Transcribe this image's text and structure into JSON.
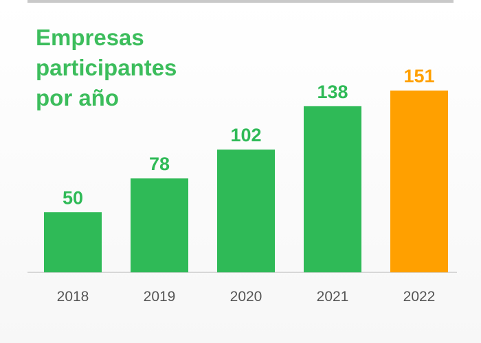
{
  "chart_data": {
    "type": "bar",
    "title_lines": [
      "Empresas",
      "participantes",
      "por año"
    ],
    "categories": [
      "2018",
      "2019",
      "2020",
      "2021",
      "2022"
    ],
    "values": [
      50,
      78,
      102,
      138,
      151
    ],
    "ylim": [
      0,
      151
    ],
    "grid": false,
    "legend": "none",
    "highlight_index": 4,
    "colors": {
      "bar": "#2fba57",
      "highlight_bar": "#ffa000",
      "title": "#3cbd5c",
      "axis": "#cccccc",
      "tick_label": "#555555"
    }
  }
}
